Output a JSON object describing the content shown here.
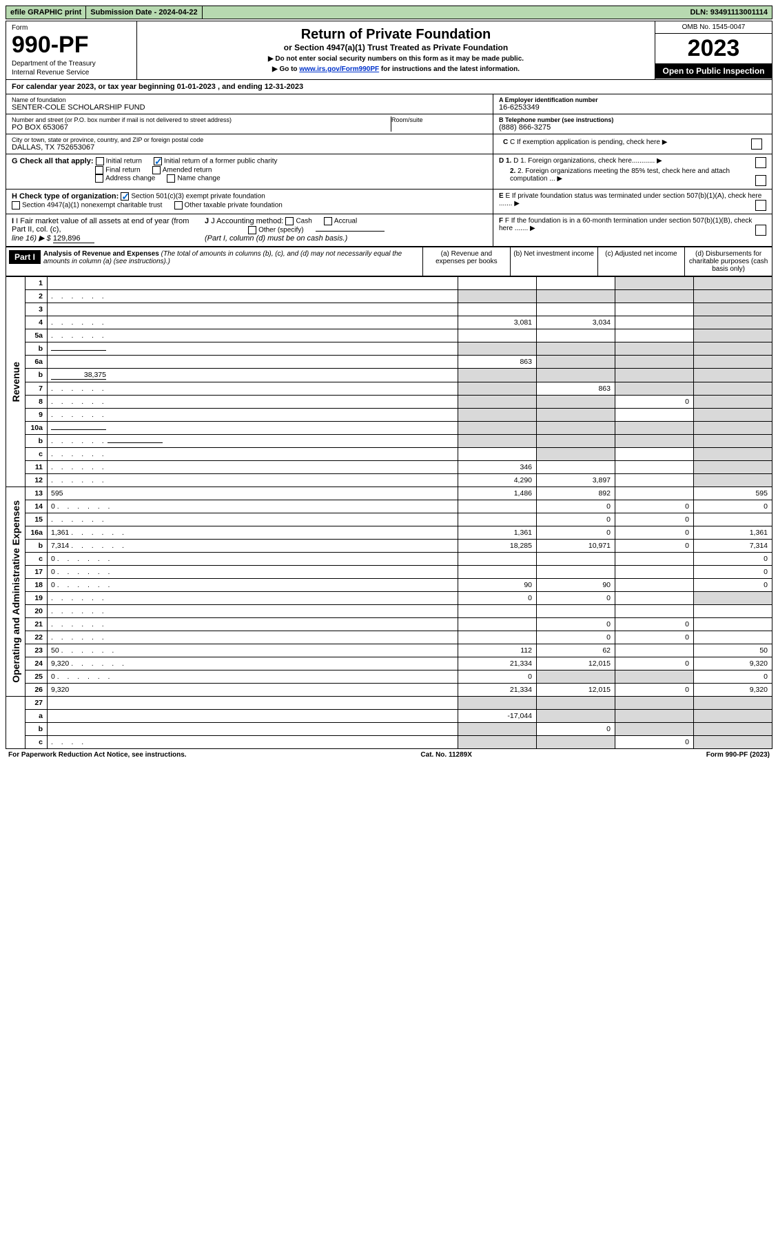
{
  "topbar": {
    "btn1": "efile GRAPHIC print",
    "btn2": "Submission Date - 2024-04-22",
    "dln": "DLN: 93491113001114"
  },
  "header": {
    "form_label": "Form",
    "form_num": "990-PF",
    "dept": "Department of the Treasury",
    "irs": "Internal Revenue Service",
    "title": "Return of Private Foundation",
    "sub": "or Section 4947(a)(1) Trust Treated as Private Foundation",
    "note1": "▶ Do not enter social security numbers on this form as it may be made public.",
    "note2_pre": "▶ Go to ",
    "note2_link": "www.irs.gov/Form990PF",
    "note2_post": " for instructions and the latest information.",
    "omb": "OMB No. 1545-0047",
    "year": "2023",
    "open": "Open to Public Inspection"
  },
  "calyear": "For calendar year 2023, or tax year beginning 01-01-2023                          , and ending 12-31-2023",
  "info": {
    "name_lbl": "Name of foundation",
    "name": "SENTER-COLE SCHOLARSHIP FUND",
    "addr_lbl": "Number and street (or P.O. box number if mail is not delivered to street address)",
    "addr": "PO BOX 653067",
    "room_lbl": "Room/suite",
    "city_lbl": "City or town, state or province, country, and ZIP or foreign postal code",
    "city": "DALLAS, TX  752653067",
    "ein_lbl": "A Employer identification number",
    "ein": "16-6253349",
    "phone_lbl": "B Telephone number (see instructions)",
    "phone": "(888) 866-3275",
    "c_lbl": "C If exemption application is pending, check here",
    "d1": "D 1. Foreign organizations, check here............",
    "d2": "2. Foreign organizations meeting the 85% test, check here and attach computation ...",
    "e": "E  If private foundation status was terminated under section 507(b)(1)(A), check here .......",
    "f": "F  If the foundation is in a 60-month termination under section 507(b)(1)(B), check here .......",
    "g_lbl": "G Check all that apply:",
    "g_opts": [
      "Initial return",
      "Initial return of a former public charity",
      "Final return",
      "Amended return",
      "Address change",
      "Name change"
    ],
    "h_lbl": "H Check type of organization:",
    "h1": "Section 501(c)(3) exempt private foundation",
    "h2": "Section 4947(a)(1) nonexempt charitable trust",
    "h3": "Other taxable private foundation",
    "i_lbl": "I Fair market value of all assets at end of year (from Part II, col. (c),",
    "i_line": "line 16) ▶ $",
    "i_val": "129,896",
    "j_lbl": "J Accounting method:",
    "j_opts": [
      "Cash",
      "Accrual"
    ],
    "j_other": "Other (specify)",
    "j_note": "(Part I, column (d) must be on cash basis.)"
  },
  "part1": {
    "label": "Part I",
    "title": "Analysis of Revenue and Expenses",
    "subtitle": "(The total of amounts in columns (b), (c), and (d) may not necessarily equal the amounts in column (a) (see instructions).)",
    "col_a": "(a)   Revenue and expenses per books",
    "col_b": "(b)   Net investment income",
    "col_c": "(c)   Adjusted net income",
    "col_d": "(d)   Disbursements for charitable purposes (cash basis only)"
  },
  "sidelabels": {
    "rev": "Revenue",
    "exp": "Operating and Administrative Expenses"
  },
  "rows": [
    {
      "n": "1",
      "d": "",
      "a": "",
      "b": "",
      "c": "",
      "gc": true,
      "gd": true
    },
    {
      "n": "2",
      "d": "",
      "dots": true,
      "a": "",
      "b": "",
      "c": "",
      "ga": true,
      "gb": true,
      "gc": true,
      "gd": true
    },
    {
      "n": "3",
      "d": "",
      "a": "",
      "b": "",
      "c": "",
      "gd": true
    },
    {
      "n": "4",
      "d": "",
      "dots": true,
      "a": "3,081",
      "b": "3,034",
      "c": "",
      "gd": true
    },
    {
      "n": "5a",
      "d": "",
      "dots": true,
      "a": "",
      "b": "",
      "c": "",
      "gd": true
    },
    {
      "n": "b",
      "d": "",
      "inline": true,
      "a": "",
      "b": "",
      "c": "",
      "ga": true,
      "gb": true,
      "gc": true,
      "gd": true
    },
    {
      "n": "6a",
      "d": "",
      "a": "863",
      "b": "",
      "c": "",
      "gb": true,
      "gc": true,
      "gd": true
    },
    {
      "n": "b",
      "d": "",
      "inline": true,
      "ival": "38,375",
      "a": "",
      "b": "",
      "c": "",
      "ga": true,
      "gb": true,
      "gc": true,
      "gd": true
    },
    {
      "n": "7",
      "d": "",
      "dots": true,
      "a": "",
      "b": "863",
      "c": "",
      "ga": true,
      "gc": true,
      "gd": true
    },
    {
      "n": "8",
      "d": "",
      "dots": true,
      "a": "",
      "b": "",
      "c": "0",
      "ga": true,
      "gb": true,
      "gd": true
    },
    {
      "n": "9",
      "d": "",
      "dots": true,
      "a": "",
      "b": "",
      "c": "",
      "ga": true,
      "gb": true,
      "gd": true
    },
    {
      "n": "10a",
      "d": "",
      "inline": true,
      "a": "",
      "b": "",
      "c": "",
      "ga": true,
      "gb": true,
      "gc": true,
      "gd": true
    },
    {
      "n": "b",
      "d": "",
      "dots": true,
      "inline": true,
      "a": "",
      "b": "",
      "c": "",
      "ga": true,
      "gb": true,
      "gc": true,
      "gd": true
    },
    {
      "n": "c",
      "d": "",
      "dots": true,
      "a": "",
      "b": "",
      "c": "",
      "gb": true,
      "gd": true
    },
    {
      "n": "11",
      "d": "",
      "dots": true,
      "a": "346",
      "b": "",
      "c": "",
      "gd": true
    },
    {
      "n": "12",
      "d": "",
      "dots": true,
      "a": "4,290",
      "b": "3,897",
      "c": "",
      "gd": true
    }
  ],
  "exprows": [
    {
      "n": "13",
      "d": "595",
      "a": "1,486",
      "b": "892",
      "c": ""
    },
    {
      "n": "14",
      "d": "0",
      "dots": true,
      "a": "",
      "b": "0",
      "c": "0"
    },
    {
      "n": "15",
      "d": "",
      "dots": true,
      "a": "",
      "b": "0",
      "c": "0"
    },
    {
      "n": "16a",
      "d": "1,361",
      "dots": true,
      "a": "1,361",
      "b": "0",
      "c": "0"
    },
    {
      "n": "b",
      "d": "7,314",
      "dots": true,
      "a": "18,285",
      "b": "10,971",
      "c": "0"
    },
    {
      "n": "c",
      "d": "0",
      "dots": true,
      "a": "",
      "b": "",
      "c": ""
    },
    {
      "n": "17",
      "d": "0",
      "dots": true,
      "a": "",
      "b": "",
      "c": ""
    },
    {
      "n": "18",
      "d": "0",
      "dots": true,
      "a": "90",
      "b": "90",
      "c": ""
    },
    {
      "n": "19",
      "d": "",
      "dots": true,
      "a": "0",
      "b": "0",
      "c": "",
      "gd": true
    },
    {
      "n": "20",
      "d": "",
      "dots": true,
      "a": "",
      "b": "",
      "c": ""
    },
    {
      "n": "21",
      "d": "",
      "dots": true,
      "a": "",
      "b": "0",
      "c": "0"
    },
    {
      "n": "22",
      "d": "",
      "dots": true,
      "a": "",
      "b": "0",
      "c": "0"
    },
    {
      "n": "23",
      "d": "50",
      "dots": true,
      "a": "112",
      "b": "62",
      "c": ""
    },
    {
      "n": "24",
      "d": "9,320",
      "dots": true,
      "a": "21,334",
      "b": "12,015",
      "c": "0"
    },
    {
      "n": "25",
      "d": "0",
      "dots": true,
      "a": "0",
      "b": "",
      "c": "",
      "gb": true,
      "gc": true
    },
    {
      "n": "26",
      "d": "9,320",
      "a": "21,334",
      "b": "12,015",
      "c": "0"
    }
  ],
  "sumrows": [
    {
      "n": "27",
      "d": "",
      "a": "",
      "b": "",
      "c": "",
      "ga": true,
      "gb": true,
      "gc": true,
      "gd": true
    },
    {
      "n": "a",
      "d": "",
      "a": "-17,044",
      "b": "",
      "c": "",
      "gb": true,
      "gc": true,
      "gd": true
    },
    {
      "n": "b",
      "d": "",
      "a": "",
      "b": "0",
      "c": "",
      "ga": true,
      "gc": true,
      "gd": true
    },
    {
      "n": "c",
      "d": "",
      "dots": true,
      "a": "",
      "b": "",
      "c": "0",
      "ga": true,
      "gb": true,
      "gd": true
    }
  ],
  "footer": {
    "left": "For Paperwork Reduction Act Notice, see instructions.",
    "mid": "Cat. No. 11289X",
    "right": "Form 990-PF (2023)"
  }
}
